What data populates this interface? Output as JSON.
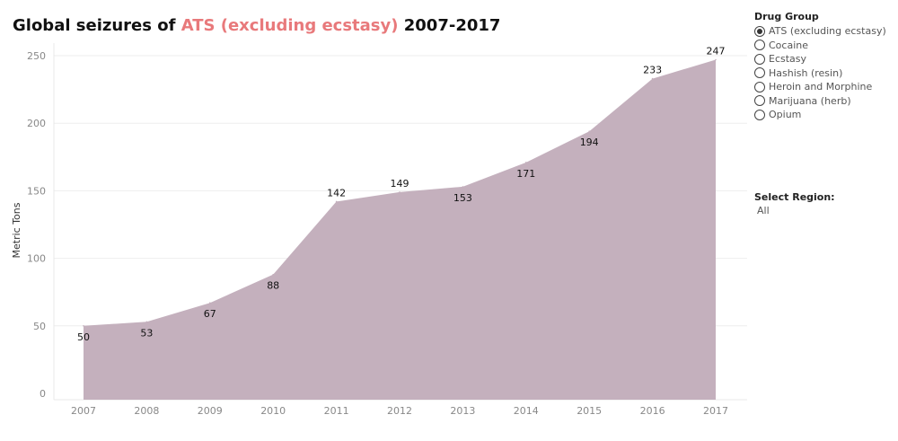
{
  "title": {
    "prefix": "Global seizures of ",
    "highlight": "ATS (excluding ecstasy)",
    "suffix": " 2007-2017",
    "highlight_color": "#e8797b"
  },
  "filters": {
    "drug_group_title": "Drug Group",
    "drug_groups": [
      {
        "label": "ATS (excluding ecstasy)",
        "selected": true
      },
      {
        "label": "Cocaine",
        "selected": false
      },
      {
        "label": "Ecstasy",
        "selected": false
      },
      {
        "label": "Hashish (resin)",
        "selected": false
      },
      {
        "label": "Heroin and Morphine",
        "selected": false
      },
      {
        "label": "Marijuana (herb)",
        "selected": false
      },
      {
        "label": "Opium",
        "selected": false
      }
    ],
    "region_title": "Select Region:",
    "region_value": "All"
  },
  "chart_data": {
    "type": "area",
    "x": [
      "2007",
      "2008",
      "2009",
      "2010",
      "2011",
      "2012",
      "2013",
      "2014",
      "2015",
      "2016",
      "2017"
    ],
    "series": [
      {
        "values": [
          50,
          53,
          67,
          88,
          142,
          149,
          153,
          171,
          194,
          233,
          247
        ],
        "color": "#c4b0bd"
      }
    ],
    "ylabel": "Metric Tons",
    "yticks": [
      0,
      50,
      100,
      150,
      200,
      250
    ],
    "ylim": [
      0,
      250
    ],
    "grid": true
  }
}
